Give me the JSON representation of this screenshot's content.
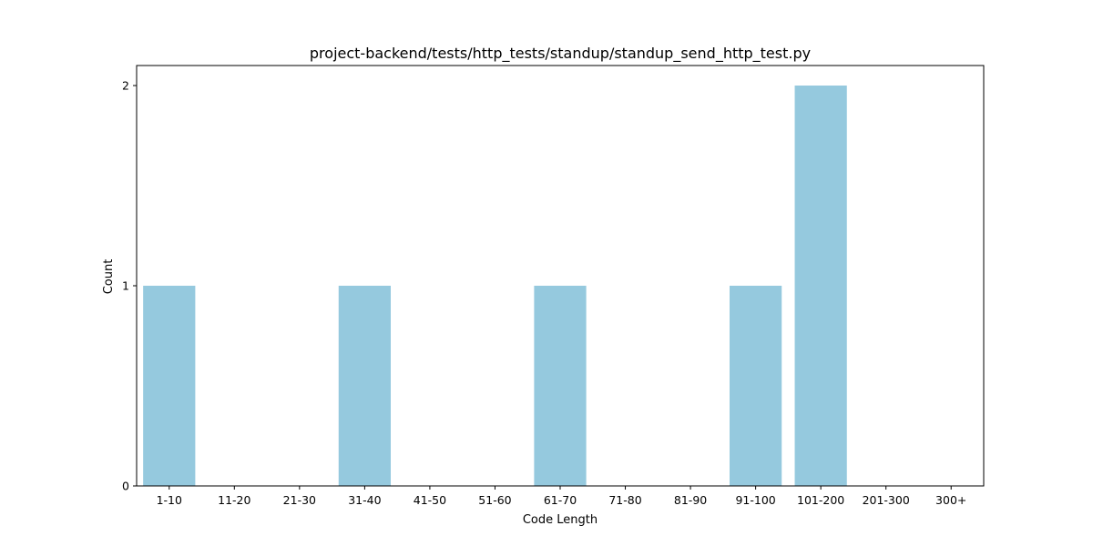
{
  "chart_data": {
    "type": "bar",
    "title": "project-backend/tests/http_tests/standup/standup_send_http_test.py",
    "xlabel": "Code Length",
    "ylabel": "Count",
    "categories": [
      "1-10",
      "11-20",
      "21-30",
      "31-40",
      "41-50",
      "51-60",
      "61-70",
      "71-80",
      "81-90",
      "91-100",
      "101-200",
      "201-300",
      "300+"
    ],
    "values": [
      1,
      0,
      0,
      1,
      0,
      0,
      1,
      0,
      0,
      1,
      2,
      0,
      0
    ],
    "ylim": [
      0,
      2.1
    ],
    "yticks": [
      0,
      1,
      2
    ],
    "grid": false,
    "legend": "none",
    "bar_color": "#95c9de"
  }
}
